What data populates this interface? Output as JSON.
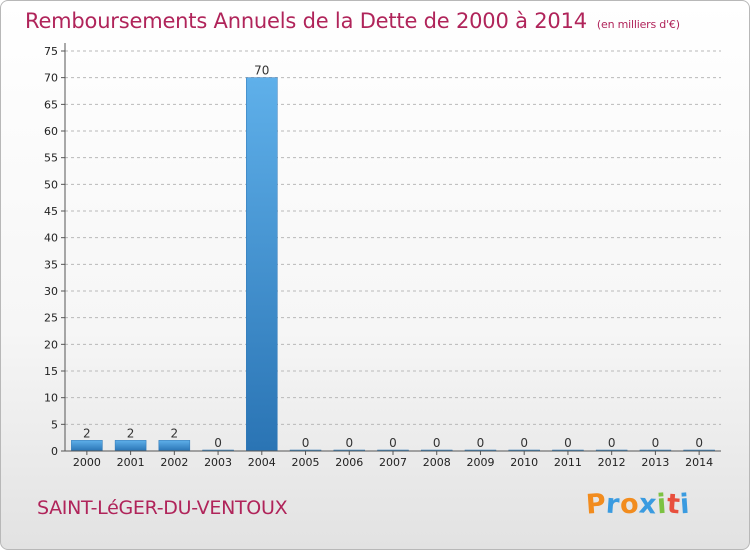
{
  "header": {
    "title": "Remboursements Annuels de la Dette de 2000 à 2014",
    "subtitle": "(en milliers d'€)"
  },
  "footer": {
    "commune": "SAINT-LéGER-DU-VENTOUX",
    "logo": [
      "P",
      "r",
      "o",
      "x",
      "i",
      "t",
      "i"
    ],
    "logo_colors": [
      "#f28c1e",
      "#3a9be0",
      "#f28c1e",
      "#3a9be0",
      "#7cc242",
      "#e84f3d",
      "#3a9be0"
    ]
  },
  "colors": {
    "bar": "#3a8fd6",
    "bar_light": "#5fb0ea",
    "bar_dark": "#2a74b4",
    "axis": "#555555",
    "grid": "#b9b9b9"
  },
  "chart_data": {
    "type": "bar",
    "title": "Remboursements Annuels de la Dette de 2000 à 2014",
    "xlabel": "",
    "ylabel": "(en milliers d'€)",
    "categories": [
      "2000",
      "2001",
      "2002",
      "2003",
      "2004",
      "2005",
      "2006",
      "2007",
      "2008",
      "2009",
      "2010",
      "2011",
      "2012",
      "2013",
      "2014"
    ],
    "values": [
      2,
      2,
      2,
      0,
      70,
      0,
      0,
      0,
      0,
      0,
      0,
      0,
      0,
      0,
      0
    ],
    "ylim": [
      0,
      75
    ],
    "yticks": [
      0,
      5,
      10,
      15,
      20,
      25,
      30,
      35,
      40,
      45,
      50,
      55,
      60,
      65,
      70,
      75
    ],
    "grid": "horizontal"
  }
}
